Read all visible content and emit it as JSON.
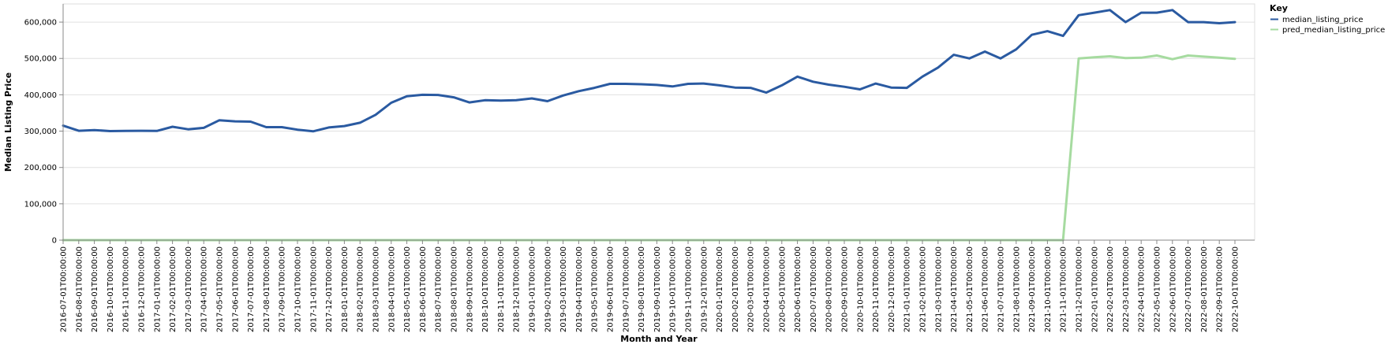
{
  "chart_data": {
    "type": "line",
    "xlabel": "Month and Year",
    "ylabel": "Median Listing Price",
    "ylim": [
      0,
      650000
    ],
    "yticks": [
      0,
      100000,
      200000,
      300000,
      400000,
      500000,
      600000
    ],
    "ytick_labels": [
      "0",
      "100,000",
      "200,000",
      "300,000",
      "400,000",
      "500,000",
      "600,000"
    ],
    "grid": true,
    "legend": {
      "title": "Key",
      "placement": "top-right"
    },
    "x": [
      "2016-07-01T00:00:00",
      "2016-08-01T00:00:00",
      "2016-09-01T00:00:00",
      "2016-10-01T00:00:00",
      "2016-11-01T00:00:00",
      "2016-12-01T00:00:00",
      "2017-01-01T00:00:00",
      "2017-02-01T00:00:00",
      "2017-03-01T00:00:00",
      "2017-04-01T00:00:00",
      "2017-05-01T00:00:00",
      "2017-06-01T00:00:00",
      "2017-07-01T00:00:00",
      "2017-08-01T00:00:00",
      "2017-09-01T00:00:00",
      "2017-10-01T00:00:00",
      "2017-11-01T00:00:00",
      "2017-12-01T00:00:00",
      "2018-01-01T00:00:00",
      "2018-02-01T00:00:00",
      "2018-03-01T00:00:00",
      "2018-04-01T00:00:00",
      "2018-05-01T00:00:00",
      "2018-06-01T00:00:00",
      "2018-07-01T00:00:00",
      "2018-08-01T00:00:00",
      "2018-09-01T00:00:00",
      "2018-10-01T00:00:00",
      "2018-11-01T00:00:00",
      "2018-12-01T00:00:00",
      "2019-01-01T00:00:00",
      "2019-02-01T00:00:00",
      "2019-03-01T00:00:00",
      "2019-04-01T00:00:00",
      "2019-05-01T00:00:00",
      "2019-06-01T00:00:00",
      "2019-07-01T00:00:00",
      "2019-08-01T00:00:00",
      "2019-09-01T00:00:00",
      "2019-10-01T00:00:00",
      "2019-11-01T00:00:00",
      "2019-12-01T00:00:00",
      "2020-01-01T00:00:00",
      "2020-02-01T00:00:00",
      "2020-03-01T00:00:00",
      "2020-04-01T00:00:00",
      "2020-05-01T00:00:00",
      "2020-06-01T00:00:00",
      "2020-07-01T00:00:00",
      "2020-08-01T00:00:00",
      "2020-09-01T00:00:00",
      "2020-10-01T00:00:00",
      "2020-11-01T00:00:00",
      "2020-12-01T00:00:00",
      "2021-01-01T00:00:00",
      "2021-02-01T00:00:00",
      "2021-03-01T00:00:00",
      "2021-04-01T00:00:00",
      "2021-05-01T00:00:00",
      "2021-06-01T00:00:00",
      "2021-07-01T00:00:00",
      "2021-08-01T00:00:00",
      "2021-09-01T00:00:00",
      "2021-10-01T00:00:00",
      "2021-11-01T00:00:00",
      "2021-12-01T00:00:00",
      "2022-01-01T00:00:00",
      "2022-02-01T00:00:00",
      "2022-03-01T00:00:00",
      "2022-04-01T00:00:00",
      "2022-05-01T00:00:00",
      "2022-06-01T00:00:00",
      "2022-07-01T00:00:00",
      "2022-08-01T00:00:00",
      "2022-09-01T00:00:00",
      "2022-10-01T00:00:00"
    ],
    "series": [
      {
        "name": "median_listing_price",
        "color": "#2a5aa1",
        "values": [
          315000,
          301000,
          303000,
          300000,
          300500,
          301000,
          300500,
          312000,
          305000,
          309000,
          330000,
          327000,
          326000,
          311000,
          311000,
          304000,
          299500,
          310000,
          314000,
          323000,
          345000,
          378000,
          396000,
          400000,
          399500,
          393000,
          379000,
          385000,
          384000,
          385000,
          390000,
          382500,
          398000,
          410000,
          419000,
          430000,
          430000,
          429000,
          427000,
          423000,
          430000,
          431000,
          426000,
          420000,
          419000,
          406000,
          426000,
          450000,
          436000,
          428000,
          422000,
          415000,
          431000,
          420000,
          419000,
          450000,
          475000,
          510000,
          500000,
          519000,
          500000,
          525000,
          565000,
          575000,
          562000,
          619000,
          626000,
          633000,
          600000,
          626000,
          626000,
          633000,
          600000,
          600000,
          597000,
          600000
        ]
      },
      {
        "name": "pred_median_listing_price",
        "color": "#a6dba0",
        "values": [
          0,
          0,
          0,
          0,
          0,
          0,
          0,
          0,
          0,
          0,
          0,
          0,
          0,
          0,
          0,
          0,
          0,
          0,
          0,
          0,
          0,
          0,
          0,
          0,
          0,
          0,
          0,
          0,
          0,
          0,
          0,
          0,
          0,
          0,
          0,
          0,
          0,
          0,
          0,
          0,
          0,
          0,
          0,
          0,
          0,
          0,
          0,
          0,
          0,
          0,
          0,
          0,
          0,
          0,
          0,
          0,
          0,
          0,
          0,
          0,
          0,
          0,
          0,
          0,
          0,
          500000,
          503000,
          506000,
          501000,
          502000,
          508000,
          498000,
          508000,
          505000,
          502000,
          499000
        ]
      }
    ]
  }
}
